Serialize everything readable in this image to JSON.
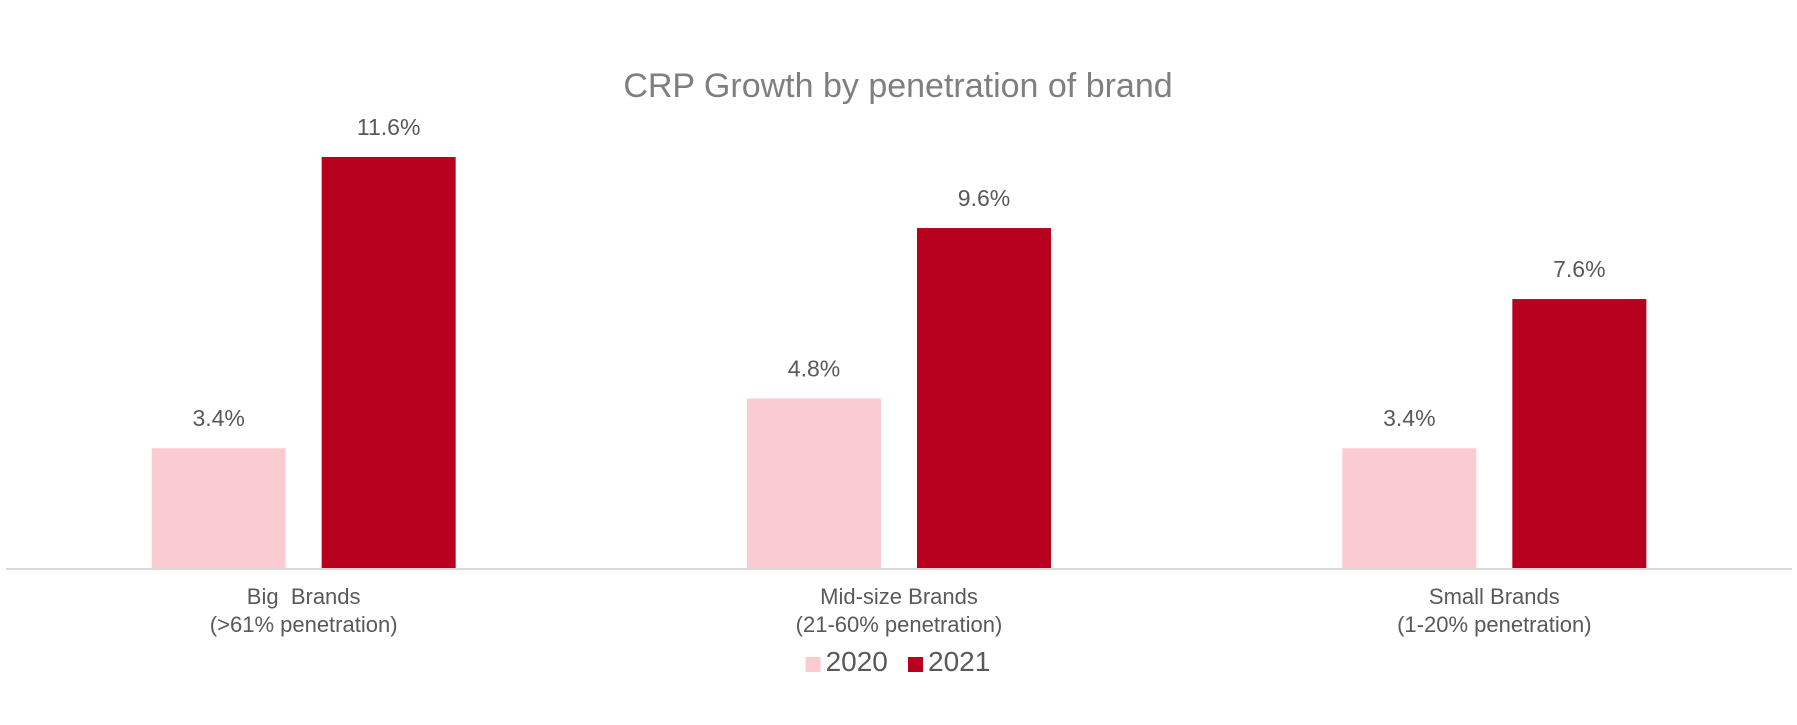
{
  "chart_data": {
    "type": "bar",
    "title": "CRP Growth by penetration of brand",
    "categories": [
      [
        "Big  Brands",
        "(>61% penetration)"
      ],
      [
        "Mid-size Brands",
        "(21-60% penetration)"
      ],
      [
        "Small Brands",
        "(1-20% penetration)"
      ]
    ],
    "series": [
      {
        "name": "2020",
        "color": "#fbcbd2",
        "values": [
          3.4,
          4.8,
          3.4
        ],
        "labels": [
          "3.4%",
          "4.8%",
          "3.4%"
        ]
      },
      {
        "name": "2021",
        "color": "#b8001f",
        "values": [
          11.6,
          9.6,
          7.6
        ],
        "labels": [
          "11.6%",
          "9.6%",
          "7.6%"
        ]
      }
    ],
    "ylim": [
      0,
      11.6
    ],
    "grid": false,
    "axis_color": "#d9d9d9",
    "legend_position": "bottom"
  }
}
